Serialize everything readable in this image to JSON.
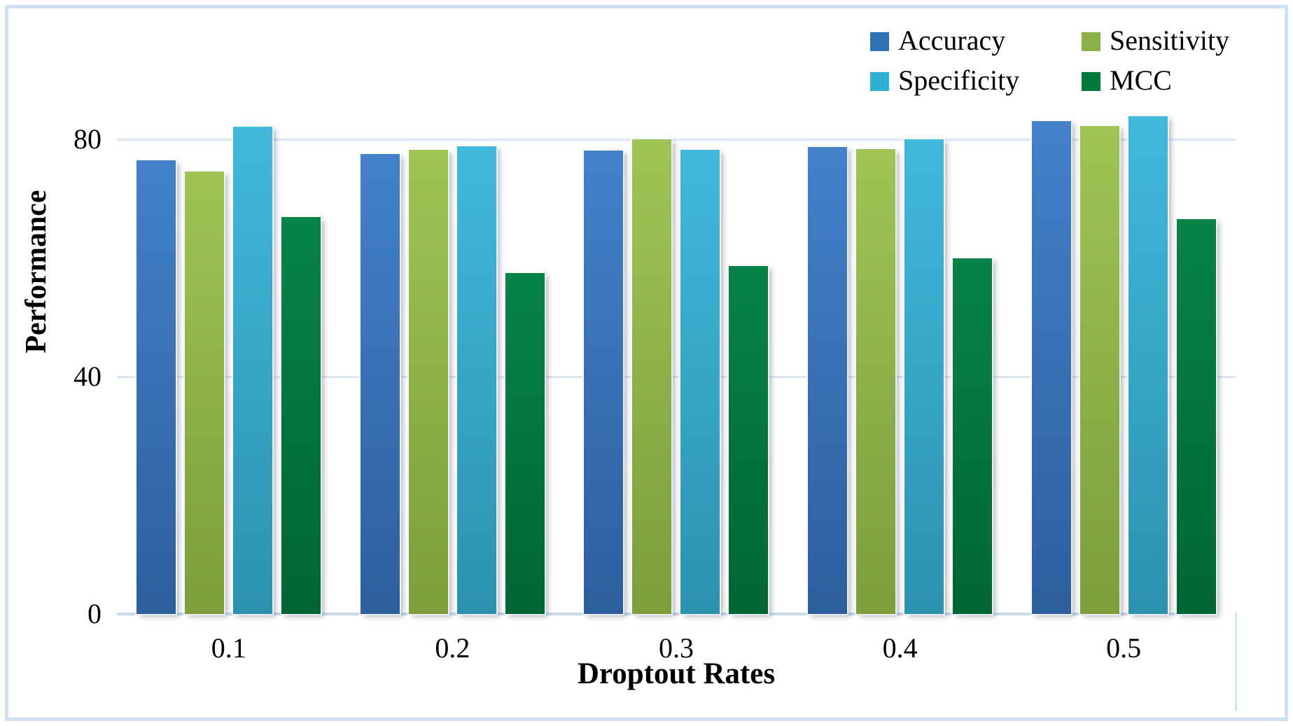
{
  "chart_data": {
    "type": "bar",
    "title": "",
    "xlabel": "Droptout Rates",
    "ylabel": "Performance",
    "categories": [
      "0.1",
      "0.2",
      "0.3",
      "0.4",
      "0.5"
    ],
    "series": [
      {
        "name": "Accuracy",
        "color": "#2E74B5",
        "gradient_top": "#4381CB",
        "gradient_bottom": "#2D5F9E",
        "values": [
          76.7,
          77.8,
          78.3,
          78.9,
          83.3
        ]
      },
      {
        "name": "Sensitivity",
        "color": "#8CB04A",
        "gradient_top": "#9FC455",
        "gradient_bottom": "#7B9E3B",
        "values": [
          74.8,
          78.5,
          80.2,
          78.6,
          82.5
        ]
      },
      {
        "name": "Specificity",
        "color": "#2FB0D2",
        "gradient_top": "#41B9DC",
        "gradient_bottom": "#2C92AE",
        "values": [
          82.4,
          79.1,
          78.5,
          80.2,
          84.1
        ]
      },
      {
        "name": "MCC",
        "color": "#00793C",
        "gradient_top": "#068347",
        "gradient_bottom": "#006633",
        "values": [
          67.1,
          57.6,
          58.8,
          60.1,
          66.7
        ]
      }
    ],
    "yticks": [
      0,
      40,
      80
    ],
    "ylim": [
      0,
      85.8
    ],
    "grid": "horizontal",
    "legend_position": "top-right",
    "legend_layout": "2x2",
    "frame_border_color": "#CFE0F2",
    "gridline_color": "#DBE6F4",
    "axis_line_color": "#C8D9EE",
    "bar_shadow": true,
    "font_style": "serif"
  }
}
